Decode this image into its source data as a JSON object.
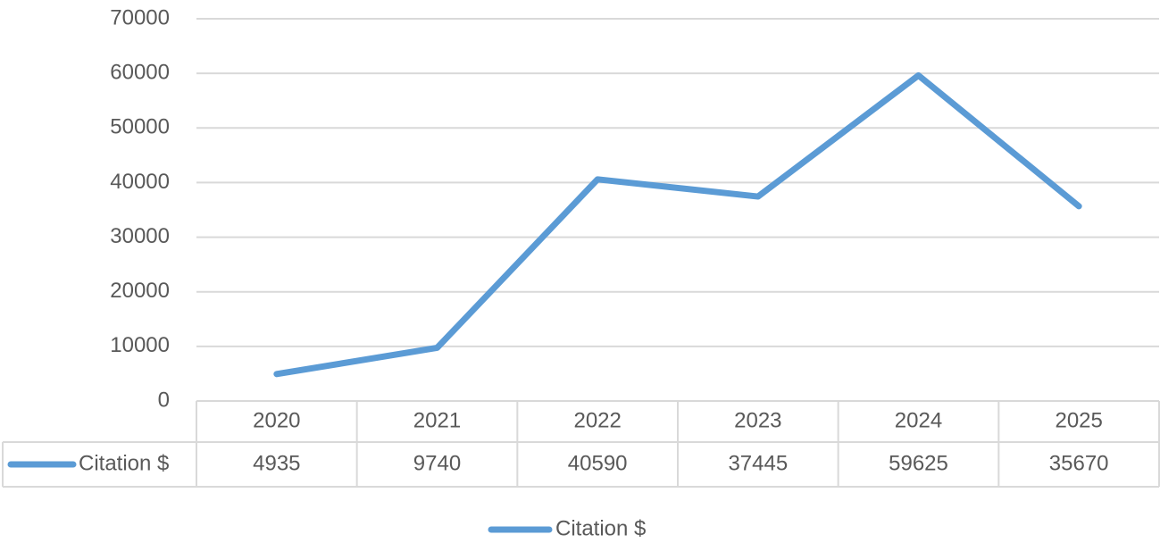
{
  "chart_data": {
    "type": "line",
    "categories": [
      "2020",
      "2021",
      "2022",
      "2023",
      "2024",
      "2025"
    ],
    "series": [
      {
        "name": "Citation $",
        "color": "#5b9bd5",
        "values": [
          4935,
          9740,
          40590,
          37445,
          59625,
          35670
        ]
      }
    ],
    "ylim": [
      0,
      70000
    ],
    "yticks": [
      0,
      10000,
      20000,
      30000,
      40000,
      50000,
      60000,
      70000
    ],
    "grid": true,
    "data_table": true,
    "legend": "bottom"
  }
}
